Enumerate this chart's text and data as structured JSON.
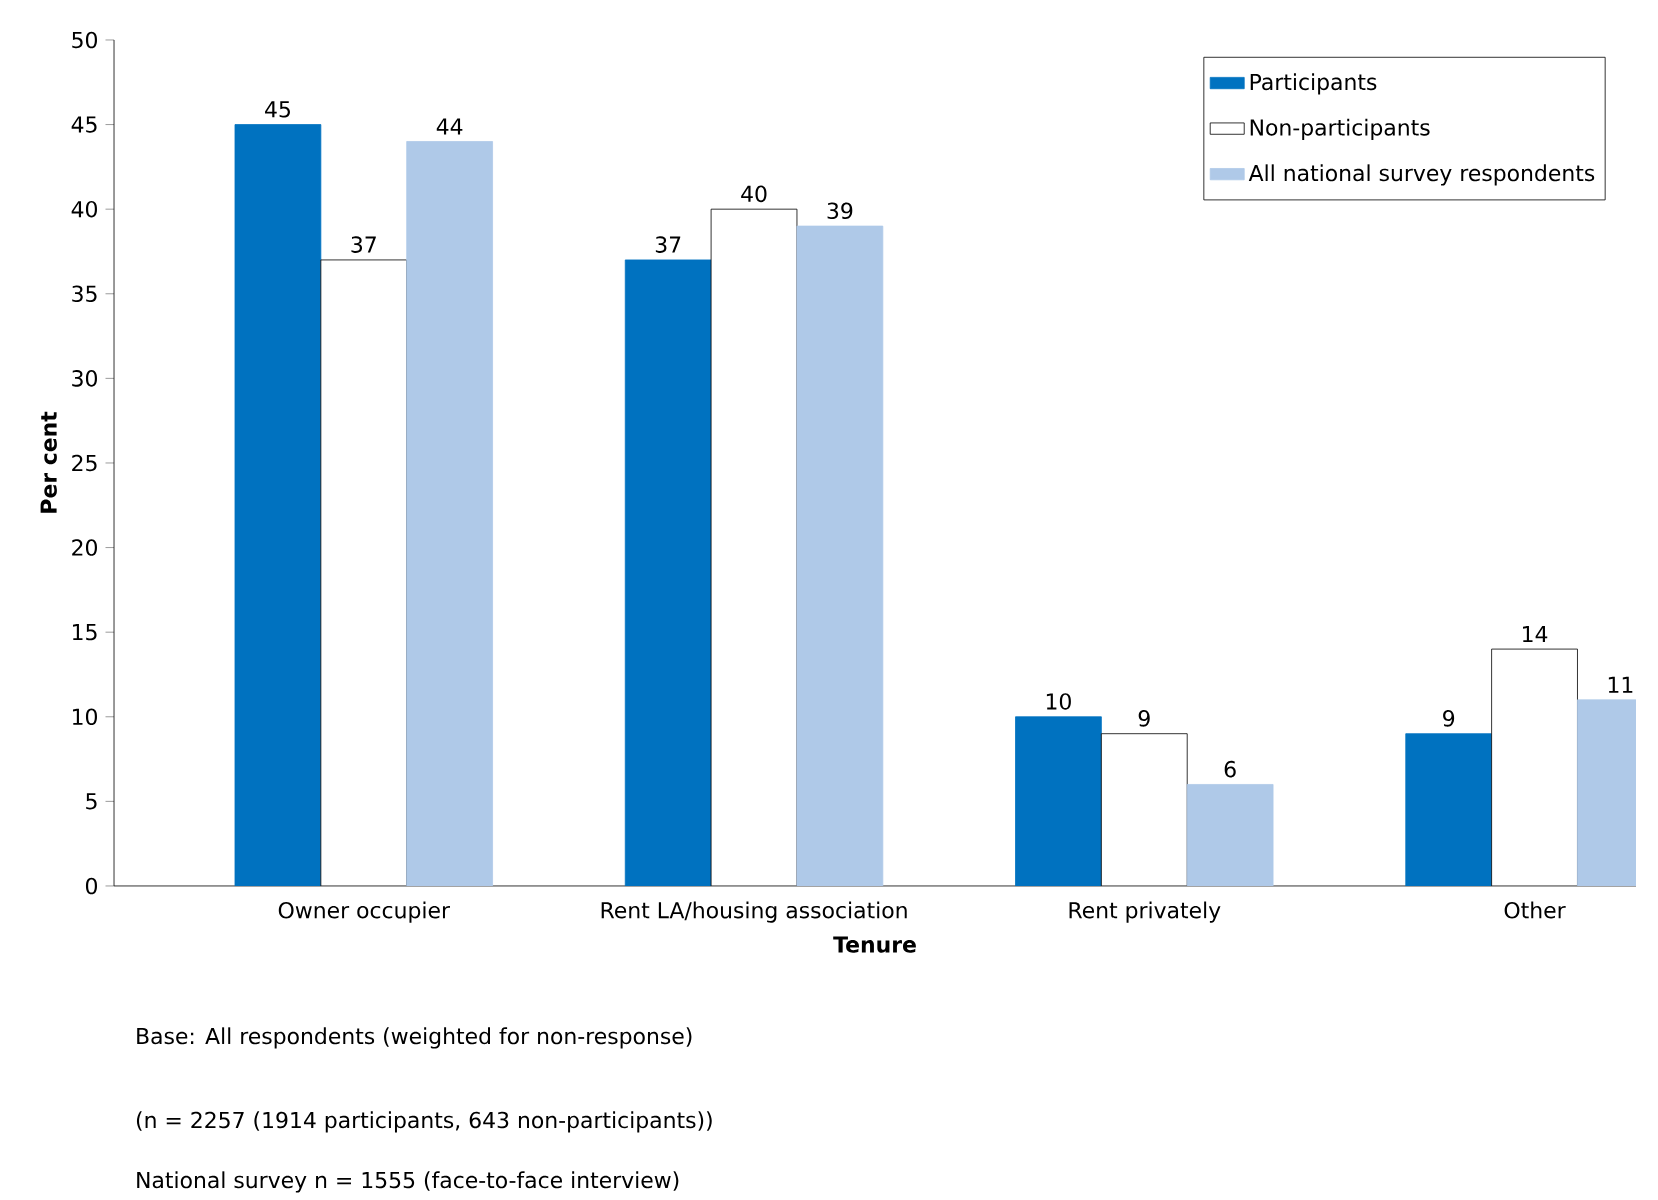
{
  "chart_data": {
    "type": "bar",
    "categories": [
      "Owner occupier",
      "Rent LA/housing association",
      "Rent privately",
      "Other"
    ],
    "series": [
      {
        "name": "Participants",
        "color": "#0072c0",
        "values": [
          45,
          37,
          10,
          9
        ]
      },
      {
        "name": "Non-participants",
        "color": "#ffffff",
        "values": [
          37,
          40,
          9,
          14
        ]
      },
      {
        "name": "All national survey respondents",
        "color": "#afc9e8",
        "values": [
          44,
          39,
          6,
          11
        ]
      }
    ],
    "xlabel": "Tenure",
    "ylabel": "Per cent",
    "ylim": [
      0,
      50
    ],
    "yticks": [
      0,
      5,
      10,
      15,
      20,
      25,
      30,
      35,
      40,
      45,
      50
    ],
    "data_labels": true,
    "legend": "top right",
    "annotations": [
      "Base: All respondents (weighted for non-response)",
      "(n = 2257 (1914 participants, 643 non-participants))",
      "National survey n = 1555 (face-to-face interview)"
    ]
  }
}
